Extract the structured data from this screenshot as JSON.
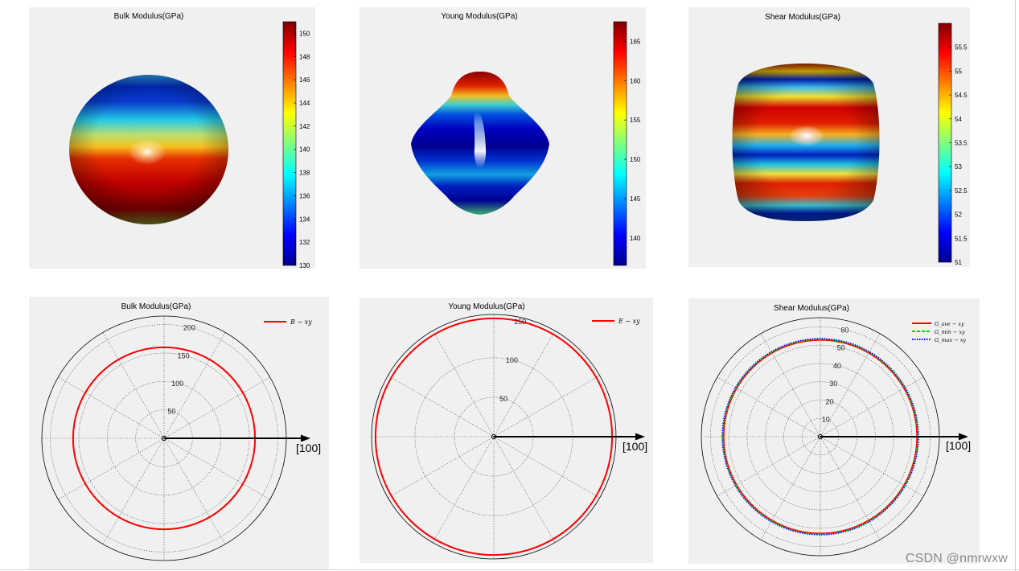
{
  "watermark": "CSDN @nmrwxw",
  "chart_data": [
    {
      "type": "surface",
      "title": "Bulk Modulus(GPa)",
      "colorbar": {
        "colormap": "jet",
        "min": 130,
        "max": 151,
        "ticks": [
          130,
          132,
          134,
          136,
          138,
          140,
          142,
          144,
          146,
          148,
          150
        ]
      }
    },
    {
      "type": "surface",
      "title": "Young Modulus(GPa)",
      "colorbar": {
        "colormap": "jet",
        "min": 136.5,
        "max": 167.5,
        "ticks": [
          140,
          145,
          150,
          155,
          160,
          165
        ]
      }
    },
    {
      "type": "surface",
      "title": "Shear Modulus(GPa)",
      "colorbar": {
        "colormap": "jet",
        "min": 51,
        "max": 56,
        "ticks": [
          51,
          51.5,
          52,
          52.5,
          53,
          53.5,
          54,
          54.5,
          55,
          55.5
        ]
      }
    },
    {
      "type": "polar",
      "title": "Bulk Modulus(GPa)",
      "rmax": 215,
      "rticks": [
        50,
        100,
        150,
        200
      ],
      "axis_label": "[100]",
      "series": [
        {
          "name": "B − xy",
          "color": "#ff0000",
          "style": "solid",
          "radius": 160
        }
      ]
    },
    {
      "type": "polar",
      "title": "Young Modulus(GPa)",
      "rmax": 155,
      "rticks": [
        50,
        100,
        150
      ],
      "axis_label": "[100]",
      "series": [
        {
          "name": "E − xy",
          "color": "#ff0000",
          "style": "solid",
          "radius": 150
        }
      ]
    },
    {
      "type": "polar",
      "title": "Shear Modulus(GPa)",
      "rmax": 65,
      "rticks": [
        10,
        20,
        30,
        40,
        50,
        60
      ],
      "axis_label": "[100]",
      "series": [
        {
          "name": "G_ave − xy",
          "color": "#ff0000",
          "style": "solid",
          "radius": 53.2
        },
        {
          "name": "G_min − xy",
          "color": "#00dd00",
          "style": "dashed",
          "radius": 53.2
        },
        {
          "name": "G_max − xy",
          "color": "#0000ff",
          "style": "dotted",
          "radius": 53.2
        }
      ]
    }
  ]
}
